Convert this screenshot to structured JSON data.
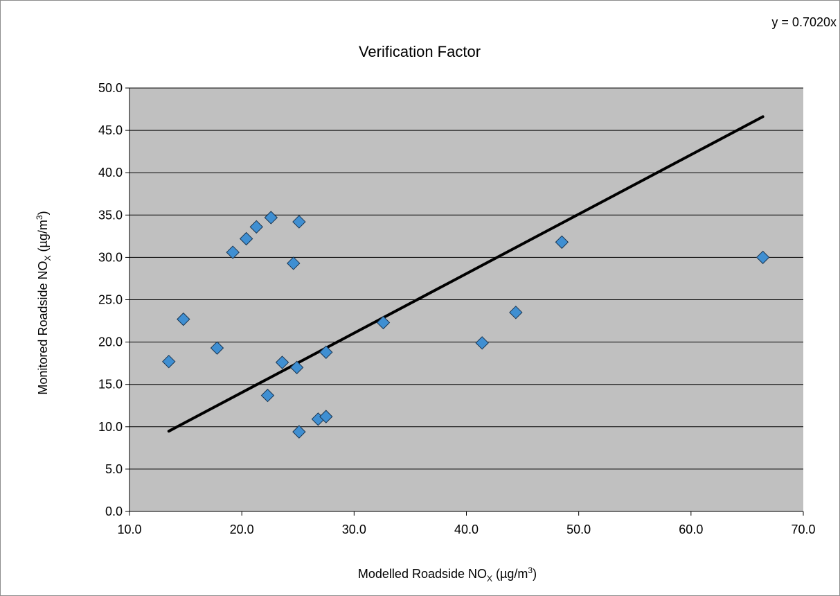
{
  "chart_data": {
    "type": "scatter",
    "title": "Verification Factor",
    "equation": "y = 0.7020x",
    "xlabel": {
      "main": "Modelled Roadside NO",
      "sub": "X",
      "unit_pre": " (µg/m",
      "sup": "3",
      "unit_post": ")"
    },
    "ylabel": {
      "main": "Monitored Roadside NO",
      "sub": "X",
      "unit_pre": " (µg/m",
      "sup": "3",
      "unit_post": ")"
    },
    "xlim": [
      10,
      70
    ],
    "ylim": [
      0,
      50
    ],
    "xticks": [
      "10.0",
      "20.0",
      "30.0",
      "40.0",
      "50.0",
      "60.0",
      "70.0"
    ],
    "yticks": [
      "0.0",
      "5.0",
      "10.0",
      "15.0",
      "20.0",
      "25.0",
      "30.0",
      "35.0",
      "40.0",
      "45.0",
      "50.0"
    ],
    "grid": "horizontal",
    "series": [
      {
        "marker": "diamond",
        "color": "#3f8fd2",
        "points": [
          {
            "x": 13.5,
            "y": 17.7
          },
          {
            "x": 14.8,
            "y": 22.7
          },
          {
            "x": 17.8,
            "y": 19.3
          },
          {
            "x": 19.2,
            "y": 30.6
          },
          {
            "x": 20.4,
            "y": 32.2
          },
          {
            "x": 21.3,
            "y": 33.6
          },
          {
            "x": 22.6,
            "y": 34.7
          },
          {
            "x": 25.1,
            "y": 34.2
          },
          {
            "x": 24.6,
            "y": 29.3
          },
          {
            "x": 23.6,
            "y": 17.6
          },
          {
            "x": 24.9,
            "y": 17.0
          },
          {
            "x": 22.3,
            "y": 13.7
          },
          {
            "x": 27.5,
            "y": 18.8
          },
          {
            "x": 26.8,
            "y": 10.9
          },
          {
            "x": 27.5,
            "y": 11.2
          },
          {
            "x": 25.1,
            "y": 9.4
          },
          {
            "x": 32.6,
            "y": 22.3
          },
          {
            "x": 41.4,
            "y": 19.9
          },
          {
            "x": 44.4,
            "y": 23.5
          },
          {
            "x": 48.5,
            "y": 31.8
          },
          {
            "x": 66.4,
            "y": 30.0
          }
        ]
      }
    ],
    "trendline": {
      "slope": 0.702,
      "x_from": 13.5,
      "x_to": 66.4,
      "color": "#000000"
    },
    "colors": {
      "plot_bg": "#c0c0c0",
      "grid": "#000000",
      "marker_stroke": "#1a3550"
    }
  }
}
